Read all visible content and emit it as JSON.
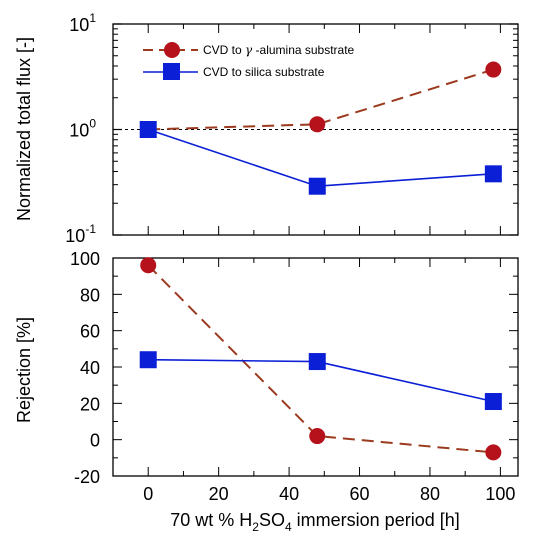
{
  "chart_data": [
    {
      "type": "line",
      "panel": "top",
      "ylabel": "Normalized total flux [-]",
      "yscale": "log",
      "ylim": [
        0.1,
        10
      ],
      "xlim": [
        -10,
        105
      ],
      "yticks": [
        {
          "value": 10,
          "base": "10",
          "exp": "1"
        },
        {
          "value": 1,
          "base": "10",
          "exp": "0"
        },
        {
          "value": 0.1,
          "base": "10",
          "exp": "-1"
        }
      ],
      "reference_line": 1,
      "legend_placement": "top-left",
      "series": [
        {
          "name_pre": "CVD to ",
          "name_greek": "γ",
          "name_post": " -alumina substrate",
          "color": "#b5121b",
          "line_color": "#9b3a1e",
          "marker": "circle",
          "dash": "dashed",
          "x": [
            0,
            48,
            98
          ],
          "y": [
            1.0,
            1.12,
            3.7
          ]
        },
        {
          "name": "CVD to silica substrate",
          "color": "#0a1fd6",
          "line_color": "#0a1fd6",
          "marker": "square",
          "dash": "solid",
          "x": [
            0,
            48,
            98
          ],
          "y": [
            1.0,
            0.29,
            0.38
          ]
        }
      ]
    },
    {
      "type": "line",
      "panel": "bottom",
      "ylabel": "Rejection [%]",
      "ylim": [
        -20,
        100
      ],
      "xlim": [
        -10,
        105
      ],
      "yticks": [
        100,
        80,
        60,
        40,
        20,
        0,
        -20
      ],
      "xticks": [
        0,
        20,
        40,
        60,
        80,
        100
      ],
      "xlabel_pre": "70 wt % H",
      "xlabel_sub1": "2",
      "xlabel_mid": "SO",
      "xlabel_sub2": "4",
      "xlabel_post": " immersion period [h]",
      "series": [
        {
          "series_ref": "alumina",
          "color": "#b5121b",
          "line_color": "#9b3a1e",
          "marker": "circle",
          "dash": "dashed",
          "x": [
            0,
            48,
            98
          ],
          "y": [
            96,
            2,
            -7
          ]
        },
        {
          "series_ref": "silica",
          "color": "#0a1fd6",
          "line_color": "#0a1fd6",
          "marker": "square",
          "dash": "solid",
          "x": [
            0,
            48,
            98
          ],
          "y": [
            44,
            43,
            21
          ]
        }
      ]
    }
  ]
}
